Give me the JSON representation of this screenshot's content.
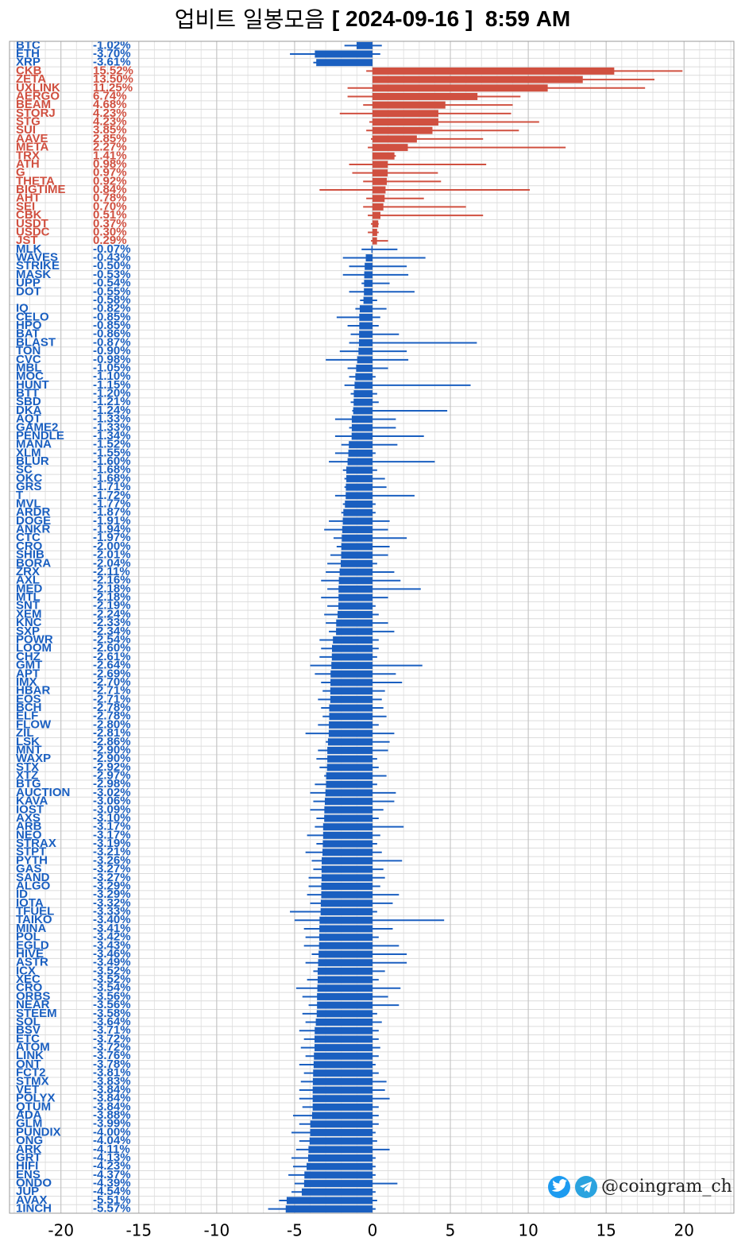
{
  "chart_data": {
    "type": "bar",
    "orientation": "horizontal",
    "title": "업비트 일봉모음",
    "title_date": "[ 2024-09-16 ]  8:59 AM",
    "watermark": "@coingram_ch",
    "xlim": [
      -23.3,
      23.2
    ],
    "xticks": [
      -20,
      -15,
      -10,
      -5,
      0,
      5,
      10,
      15,
      20
    ],
    "grid": true,
    "up_color": "#d05040",
    "down_color": "#1a5fc0",
    "categories": [
      "BTC",
      "ETH",
      "XRP",
      "CKB",
      "ZETA",
      "UXLINK",
      "AERGO",
      "BEAM",
      "STORJ",
      "STG",
      "SUI",
      "AAVE",
      "META",
      "TRX",
      "ATH",
      "G",
      "THETA",
      "BIGTIME",
      "AHT",
      "SEI",
      "CBK",
      "USDT",
      "USDC",
      "JST",
      "MLK",
      "WAVES",
      "STRIKE",
      "MASK",
      "UPP",
      "DOT",
      null,
      "IQ",
      "CELO",
      "HPO",
      "BAT",
      "BLAST",
      "TON",
      "CVC",
      "MBL",
      "MOC",
      "HUNT",
      "BTT",
      "SBD",
      "DKA",
      "AQT",
      "GAME2",
      "PENDLE",
      "MANA",
      "XLM",
      "BLUR",
      "SC",
      "OKC",
      "GRS",
      "T",
      "MVL",
      "ARDR",
      "DOGE",
      "ANKR",
      "CTC",
      "CRO",
      "SHIB",
      "BORA",
      "ZRX",
      "AXL",
      "MED",
      "MTL",
      "SNT",
      "XEM",
      "KNC",
      "SXP",
      "POWR",
      "LOOM",
      "CHZ",
      "GMT",
      "APT",
      "IMX",
      "HBAR",
      "EOS",
      "BCH",
      "ELF",
      "FLOW",
      "ZIL",
      "LSK",
      "MNT",
      "WAXP",
      "STX",
      "XTZ",
      "BTG",
      "AUCTION",
      "KAVA",
      "IOST",
      "AXS",
      "ARB",
      "NEO",
      "STRAX",
      "STPT",
      "PYTH",
      "GAS",
      "SAND",
      "ALGO",
      "ID",
      "IOTA",
      "TFUEL",
      "TAIKO",
      "MINA",
      "POL",
      "EGLD",
      "HIVE",
      "ASTR",
      "ICX",
      "XEC",
      "CRO",
      "ORBS",
      "NEAR",
      "STEEM",
      "SOL",
      "BSV",
      "ETC",
      "ATOM",
      "LINK",
      "ONT",
      "FCT2",
      "STMX",
      "VET",
      "POLYX",
      "QTUM",
      "ADA",
      "GLM",
      "PUNDIX",
      "ONG",
      "ARK",
      "GRT",
      "HIFI",
      "ENS",
      "ONDO",
      "JUP",
      "AVAX",
      "1INCH"
    ],
    "values": [
      -1.02,
      -3.7,
      -3.61,
      15.52,
      13.5,
      11.25,
      6.74,
      4.68,
      4.23,
      4.23,
      3.85,
      2.85,
      2.27,
      1.41,
      0.98,
      0.97,
      0.92,
      0.84,
      0.78,
      0.7,
      0.51,
      0.37,
      0.3,
      0.29,
      -0.07,
      -0.43,
      -0.5,
      -0.53,
      -0.54,
      -0.55,
      -0.58,
      -0.82,
      -0.85,
      -0.85,
      -0.86,
      -0.87,
      -0.9,
      -0.98,
      -1.05,
      -1.1,
      -1.15,
      -1.2,
      -1.21,
      -1.24,
      -1.33,
      -1.33,
      -1.34,
      -1.52,
      -1.55,
      -1.6,
      -1.68,
      -1.68,
      -1.71,
      -1.72,
      -1.77,
      -1.87,
      -1.91,
      -1.94,
      -1.97,
      -2.0,
      -2.01,
      -2.04,
      -2.11,
      -2.16,
      -2.18,
      -2.18,
      -2.19,
      -2.24,
      -2.33,
      -2.34,
      -2.54,
      -2.6,
      -2.61,
      -2.64,
      -2.69,
      -2.7,
      -2.71,
      -2.71,
      -2.78,
      -2.78,
      -2.8,
      -2.81,
      -2.86,
      -2.9,
      -2.9,
      -2.92,
      -2.97,
      -2.98,
      -3.02,
      -3.06,
      -3.09,
      -3.1,
      -3.17,
      -3.17,
      -3.19,
      -3.21,
      -3.26,
      -3.27,
      -3.27,
      -3.29,
      -3.29,
      -3.32,
      -3.33,
      -3.4,
      -3.41,
      -3.42,
      -3.43,
      -3.46,
      -3.49,
      -3.52,
      -3.52,
      -3.54,
      -3.56,
      -3.56,
      -3.58,
      -3.64,
      -3.71,
      -3.72,
      -3.72,
      -3.76,
      -3.78,
      -3.81,
      -3.83,
      -3.84,
      -3.84,
      -3.84,
      -3.88,
      -3.99,
      -4.0,
      -4.04,
      -4.11,
      -4.13,
      -4.23,
      -4.37,
      -4.39,
      -4.54,
      -5.51,
      -5.57
    ],
    "value_labels": [
      "-1.02%",
      "-3.70%",
      "-3.61%",
      "15.52%",
      "13.50%",
      "11.25%",
      "6.74%",
      "4.68%",
      "4.23%",
      "4.23%",
      "3.85%",
      "2.85%",
      "2.27%",
      "1.41%",
      "0.98%",
      "0.97%",
      "0.92%",
      "0.84%",
      "0.78%",
      "0.70%",
      "0.51%",
      "0.37%",
      "0.30%",
      "0.29%",
      "-0.07%",
      "-0.43%",
      "-0.50%",
      "-0.53%",
      "-0.54%",
      "-0.55%",
      "-0.58%",
      "-0.82%",
      "-0.85%",
      "-0.85%",
      "-0.86%",
      "-0.87%",
      "-0.90%",
      "-0.98%",
      "-1.05%",
      "-1.10%",
      "-1.15%",
      "-1.20%",
      "-1.21%",
      "-1.24%",
      "-1.33%",
      "-1.33%",
      "-1.34%",
      "-1.52%",
      "-1.55%",
      "-1.60%",
      "-1.68%",
      "-1.68%",
      "-1.71%",
      "-1.72%",
      "-1.77%",
      "-1.87%",
      "-1.91%",
      "-1.94%",
      "-1.97%",
      "-2.00%",
      "-2.01%",
      "-2.04%",
      "-2.11%",
      "-2.16%",
      "-2.18%",
      "-2.18%",
      "-2.19%",
      "-2.24%",
      "-2.33%",
      "-2.34%",
      "-2.54%",
      "-2.60%",
      "-2.61%",
      "-2.64%",
      "-2.69%",
      "-2.70%",
      "-2.71%",
      "-2.71%",
      "-2.78%",
      "-2.78%",
      "-2.80%",
      "-2.81%",
      "-2.86%",
      "-2.90%",
      "-2.90%",
      "-2.92%",
      "-2.97%",
      "-2.98%",
      "-3.02%",
      "-3.06%",
      "-3.09%",
      "-3.10%",
      "-3.17%",
      "-3.17%",
      "-3.19%",
      "-3.21%",
      "-3.26%",
      "-3.27%",
      "-3.27%",
      "-3.29%",
      "-3.29%",
      "-3.32%",
      "-3.33%",
      "-3.40%",
      "-3.41%",
      "-3.42%",
      "-3.43%",
      "-3.46%",
      "-3.49%",
      "-3.52%",
      "-3.52%",
      "-3.54%",
      "-3.56%",
      "-3.56%",
      "-3.58%",
      "-3.64%",
      "-3.71%",
      "-3.72%",
      "-3.72%",
      "-3.76%",
      "-3.78%",
      "-3.81%",
      "-3.83%",
      "-3.84%",
      "-3.84%",
      "-3.84%",
      "-3.88%",
      "-3.99%",
      "-4.00%",
      "-4.04%",
      "-4.11%",
      "-4.13%",
      "-4.23%",
      "-4.37%",
      "-4.39%",
      "-4.54%",
      "-5.51%",
      "-5.57%"
    ],
    "low": [
      -1.8,
      -5.3,
      -3.8,
      -0.4,
      0,
      -1.6,
      -1.6,
      -0.6,
      -2.1,
      -0.2,
      -0.4,
      -0.1,
      -0.3,
      0,
      -1.5,
      -1.3,
      -0.6,
      -3.4,
      -0.4,
      -0.6,
      -0.3,
      -0.1,
      -0.3,
      -0.1,
      -0.7,
      -1.9,
      -1.5,
      -1.9,
      -0.7,
      -1.5,
      -0.8,
      -1.1,
      -2.3,
      -1.6,
      -1.4,
      -1.5,
      -2.1,
      -3.0,
      -1.6,
      -1.5,
      -1.8,
      -1.4,
      -1.4,
      -1.3,
      -2.4,
      -1.5,
      -2.4,
      -2.0,
      -2.4,
      -2.8,
      -1.9,
      -1.8,
      -1.8,
      -2.4,
      -1.9,
      -2.0,
      -2.8,
      -3.1,
      -2.5,
      -2.3,
      -2.7,
      -2.9,
      -3.0,
      -3.3,
      -2.9,
      -3.3,
      -2.9,
      -3.1,
      -3.0,
      -2.8,
      -3.4,
      -3.3,
      -3.4,
      -4.0,
      -3.7,
      -3.3,
      -3.2,
      -3.5,
      -3.3,
      -3.2,
      -3.5,
      -4.3,
      -3.0,
      -3.5,
      -3.6,
      -3.4,
      -3.1,
      -3.7,
      -4.0,
      -3.8,
      -4.0,
      -3.6,
      -3.7,
      -4.2,
      -3.6,
      -4.3,
      -3.9,
      -3.8,
      -4.1,
      -4.1,
      -4.2,
      -4.0,
      -5.3,
      -5.0,
      -4.4,
      -4.3,
      -4.4,
      -3.9,
      -4.3,
      -3.8,
      -4.2,
      -4.9,
      -4.5,
      -4.1,
      -4.5,
      -4.3,
      -4.7,
      -4.4,
      -4.6,
      -4.3,
      -4.7,
      -4.4,
      -4.6,
      -4.7,
      -4.7,
      -4.5,
      -5.1,
      -4.7,
      -5.2,
      -4.7,
      -4.9,
      -5.2,
      -5.1,
      -5.4,
      -5.0,
      -5.2,
      -6.0,
      -6.7
    ],
    "high": [
      0.6,
      0.5,
      0,
      19.9,
      18.1,
      17.5,
      9.5,
      9.0,
      8.9,
      10.7,
      9.4,
      7.1,
      12.4,
      1.5,
      7.3,
      4.2,
      4.4,
      10.1,
      3.3,
      6.0,
      7.1,
      0.4,
      0.4,
      1.0,
      1.6,
      3.4,
      2.2,
      2.3,
      1.1,
      2.7,
      0.3,
      0.9,
      0.5,
      0.4,
      1.7,
      6.7,
      2.2,
      2.3,
      1.0,
      0.2,
      6.3,
      0.3,
      0.4,
      4.8,
      1.5,
      1.5,
      3.3,
      1.6,
      0.2,
      4.0,
      0.3,
      0.8,
      0.9,
      2.7,
      0.2,
      0.2,
      1.1,
      1.0,
      2.2,
      1.1,
      1.0,
      0.3,
      1.4,
      1.8,
      3.1,
      1.0,
      0.2,
      0.4,
      1.0,
      1.4,
      0.4,
      0.4,
      0.3,
      3.2,
      1.5,
      1.9,
      0.8,
      0.6,
      0.7,
      0.9,
      0.4,
      1.4,
      1.1,
      1.0,
      0.3,
      0.4,
      0.9,
      0.3,
      1.5,
      1.4,
      0.7,
      0.4,
      2.0,
      0.5,
      0.3,
      0.6,
      1.9,
      0.7,
      0.8,
      0.5,
      1.7,
      1.3,
      0.3,
      4.6,
      1.3,
      0.4,
      1.7,
      2.2,
      2.2,
      0.8,
      0.4,
      1.8,
      1.0,
      1.7,
      0.3,
      0.6,
      0.4,
      0.4,
      0.5,
      0.4,
      0.2,
      0.4,
      0.9,
      0.8,
      1.1,
      0.4,
      0.4,
      0.4,
      0.2,
      0.3,
      1.1,
      0.2,
      0.2,
      0.2,
      1.6,
      0.2,
      0.3,
      0.2
    ]
  }
}
